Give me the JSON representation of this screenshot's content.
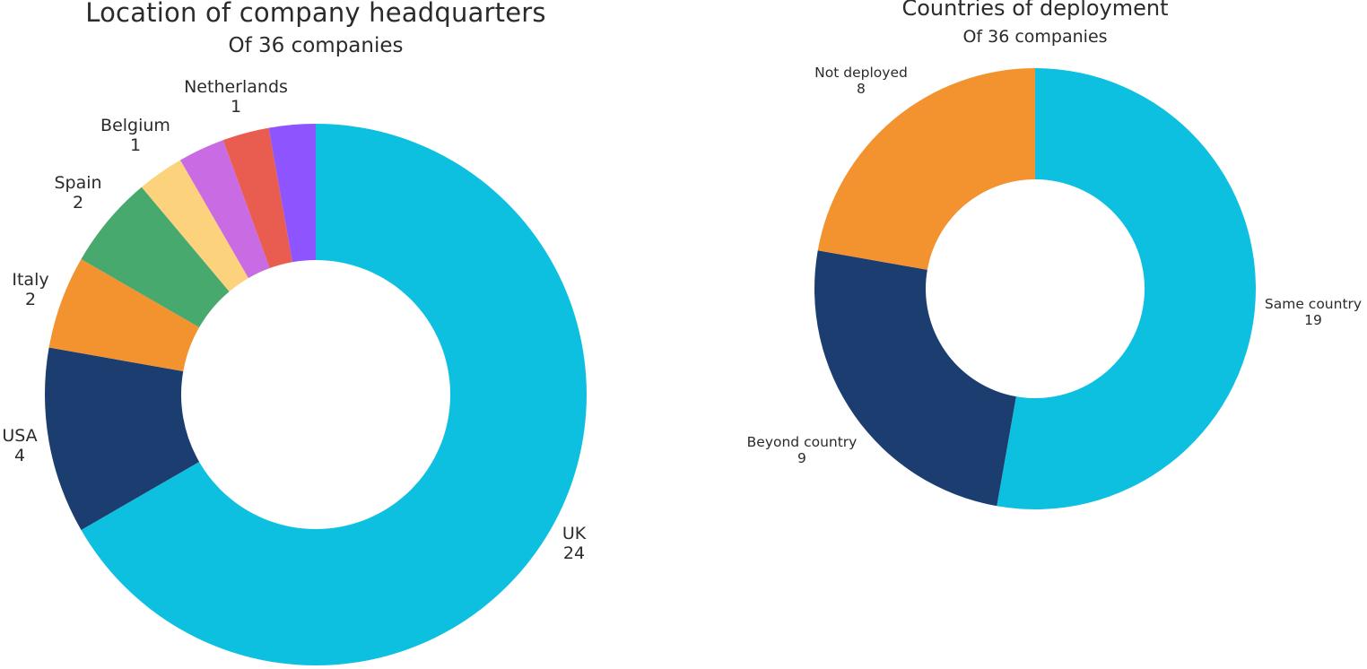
{
  "chart_data": [
    {
      "type": "pie",
      "variant": "donut",
      "title": "Location of company headquarters",
      "subtitle": "Of 36 companies",
      "total": 36,
      "center": [
        352,
        440
      ],
      "outer_radius": 302,
      "inner_radius": 150,
      "start_angle_deg": 0,
      "direction": "clockwise",
      "slices": [
        {
          "label": "UK",
          "value": 24,
          "color": "#0EC0E0",
          "show_label": true,
          "label_pos": [
            640,
            607
          ]
        },
        {
          "label": "USA",
          "value": 4,
          "color": "#1B3D70",
          "show_label": true,
          "label_pos": [
            22,
            498
          ]
        },
        {
          "label": "Italy",
          "value": 2,
          "color": "#F29330",
          "show_label": true,
          "label_pos": [
            34,
            324
          ]
        },
        {
          "label": "Spain",
          "value": 2,
          "color": "#47A96E",
          "show_label": true,
          "label_pos": [
            87,
            216
          ]
        },
        {
          "label": "Belgium",
          "value": 1,
          "color": "#FCD27D",
          "show_label": true,
          "label_pos": [
            151,
            152
          ]
        },
        {
          "label": "",
          "value": 1,
          "color": "#C96BE3",
          "show_label": false
        },
        {
          "label": "",
          "value": 1,
          "color": "#E95D50",
          "show_label": false
        },
        {
          "label": "Netherlands",
          "value": 1,
          "color": "#8E55FF",
          "show_label": true,
          "label_pos": [
            263,
            109
          ]
        }
      ]
    },
    {
      "type": "pie",
      "variant": "donut",
      "title": "Countries of deployment",
      "subtitle": "Of 36 companies",
      "total": 36,
      "center": [
        1154,
        322
      ],
      "outer_radius": 246,
      "inner_radius": 122,
      "start_angle_deg": 0,
      "direction": "clockwise",
      "slices": [
        {
          "label": "Same country",
          "value": 19,
          "color": "#0EC0E0",
          "show_label": true,
          "label_pos": [
            1464,
            349
          ]
        },
        {
          "label": "Beyond country",
          "value": 9,
          "color": "#1B3D70",
          "show_label": true,
          "label_pos": [
            894,
            503
          ]
        },
        {
          "label": "Not deployed",
          "value": 8,
          "color": "#F29330",
          "show_label": true,
          "label_pos": [
            960,
            91
          ]
        }
      ]
    }
  ]
}
